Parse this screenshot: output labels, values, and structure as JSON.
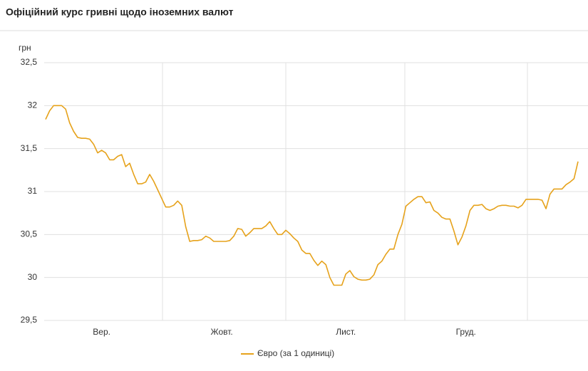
{
  "chart_data": {
    "type": "line",
    "title": "Офіційний курс гривні щодо іноземних валют",
    "ylabel": "грн",
    "categories": [
      null,
      null,
      null,
      null,
      null,
      null,
      null,
      null,
      null,
      null,
      null,
      null,
      null,
      null,
      "Вер.",
      null,
      null,
      null,
      null,
      null,
      null,
      null,
      null,
      null,
      null,
      null,
      null,
      null,
      null,
      null,
      null,
      null,
      null,
      null,
      null,
      null,
      null,
      null,
      null,
      null,
      null,
      null,
      null,
      null,
      "Жовт.",
      null,
      null,
      null,
      null,
      null,
      null,
      null,
      null,
      null,
      null,
      null,
      null,
      null,
      null,
      null,
      null,
      null,
      null,
      null,
      null,
      null,
      null,
      null,
      null,
      null,
      null,
      null,
      null,
      null,
      null,
      "Лист.",
      null,
      null,
      null,
      null,
      null,
      null,
      null,
      null,
      null,
      null,
      null,
      null,
      null,
      null,
      null,
      null,
      null,
      null,
      null,
      null,
      null,
      null,
      null,
      null,
      null,
      null,
      null,
      null,
      null,
      "Груд.",
      null,
      null,
      null,
      null,
      null,
      null,
      null,
      null,
      null,
      null,
      null,
      null,
      null,
      null,
      null,
      null,
      null,
      null,
      null,
      null,
      null,
      null,
      null,
      null,
      null,
      null,
      null,
      null
    ],
    "series": [
      {
        "name": "Євро (за 1 одиниці)",
        "color": "#e6a21b",
        "values": [
          31.84,
          31.94,
          32.0,
          32.0,
          32.0,
          31.96,
          31.8,
          31.7,
          31.63,
          31.62,
          31.62,
          31.61,
          31.55,
          31.45,
          31.48,
          31.45,
          31.37,
          31.37,
          31.41,
          31.43,
          31.29,
          31.33,
          31.2,
          31.09,
          31.09,
          31.11,
          31.2,
          31.12,
          31.02,
          30.92,
          30.82,
          30.82,
          30.84,
          30.89,
          30.84,
          30.59,
          30.42,
          30.43,
          30.43,
          30.44,
          30.48,
          30.46,
          30.42,
          30.42,
          30.42,
          30.42,
          30.43,
          30.48,
          30.57,
          30.56,
          30.48,
          30.52,
          30.57,
          30.57,
          30.57,
          30.6,
          30.65,
          30.57,
          30.5,
          30.5,
          30.55,
          30.51,
          30.46,
          30.42,
          30.32,
          30.28,
          30.28,
          30.2,
          30.14,
          30.19,
          30.15,
          30.0,
          29.91,
          29.91,
          29.91,
          30.04,
          30.08,
          30.01,
          29.98,
          29.97,
          29.97,
          29.98,
          30.03,
          30.15,
          30.19,
          30.27,
          30.33,
          30.33,
          30.5,
          30.62,
          30.83,
          30.87,
          30.91,
          30.94,
          30.94,
          30.87,
          30.88,
          30.78,
          30.75,
          30.7,
          30.68,
          30.68,
          30.54,
          30.38,
          30.47,
          30.6,
          30.78,
          30.84,
          30.84,
          30.85,
          30.8,
          30.78,
          30.8,
          30.83,
          30.84,
          30.84,
          30.83,
          30.83,
          30.81,
          30.84,
          30.91,
          30.91,
          30.91,
          30.91,
          30.9,
          30.8,
          30.97,
          31.03,
          31.03,
          31.03,
          31.08,
          31.11,
          31.15,
          31.35
        ]
      }
    ],
    "ylim": [
      29.5,
      32.5
    ],
    "yticks": [
      {
        "value": 29.5,
        "label": "29,5"
      },
      30,
      {
        "value": 30.5,
        "label": "30,5"
      },
      31,
      {
        "value": 31.5,
        "label": "31,5"
      },
      32,
      {
        "value": 32.5,
        "label": "32,5"
      }
    ],
    "grid": true,
    "legend": "bottom"
  }
}
